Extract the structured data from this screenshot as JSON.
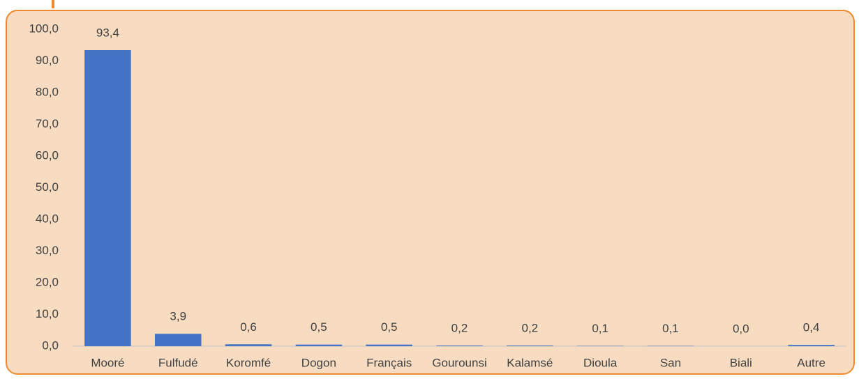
{
  "chart_data": {
    "type": "bar",
    "categories": [
      "Mooré",
      "Fulfudé",
      "Koromfé",
      "Dogon",
      "Français",
      "Gourounsi",
      "Kalamsé",
      "Dioula",
      "San",
      "Biali",
      "Autre"
    ],
    "values": [
      93.4,
      3.9,
      0.6,
      0.5,
      0.5,
      0.2,
      0.2,
      0.1,
      0.1,
      0.0,
      0.4
    ],
    "value_labels": [
      "93,4",
      "3,9",
      "0,6",
      "0,5",
      "0,5",
      "0,2",
      "0,2",
      "0,1",
      "0,1",
      "0,0",
      "0,4"
    ],
    "color": "#4472c4",
    "ylim": [
      0,
      100
    ],
    "yticks": [
      {
        "value": 0,
        "label": "0,0"
      },
      {
        "value": 10,
        "label": "10,0"
      },
      {
        "value": 20,
        "label": "20,0"
      },
      {
        "value": 30,
        "label": "30,0"
      },
      {
        "value": 40,
        "label": "40,0"
      },
      {
        "value": 50,
        "label": "50,0"
      },
      {
        "value": 60,
        "label": "60,0"
      },
      {
        "value": 70,
        "label": "70,0"
      },
      {
        "value": 80,
        "label": "80,0"
      },
      {
        "value": 90,
        "label": "90,0"
      },
      {
        "value": 100,
        "label": "100,0"
      }
    ],
    "grid": false
  }
}
